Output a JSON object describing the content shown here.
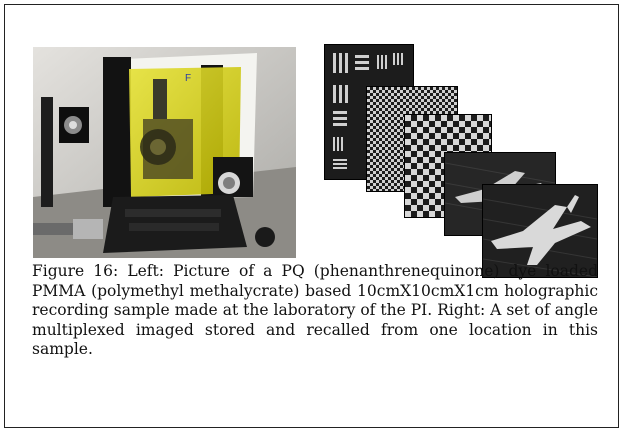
{
  "figure": {
    "caption": "Figure 16:  Left: Picture of a PQ (phenanthrenequinone) dye loaded PMMA (polymethyl methalycrate) based 10cmX10cmX1cm holographic recording sample made at the laboratory of the PI. Right: A set of angle multiplexed imaged stored and recalled from one location in this sample.",
    "left_photo": {
      "sample_label": "F",
      "sample_color": "#d7d21a",
      "mount_color": "#141414"
    },
    "right_images": {
      "frames": [
        "resolution-target",
        "fine-checkerboard",
        "coarse-checkerboard",
        "jet-aircraft",
        "jet-aircraft"
      ]
    }
  }
}
